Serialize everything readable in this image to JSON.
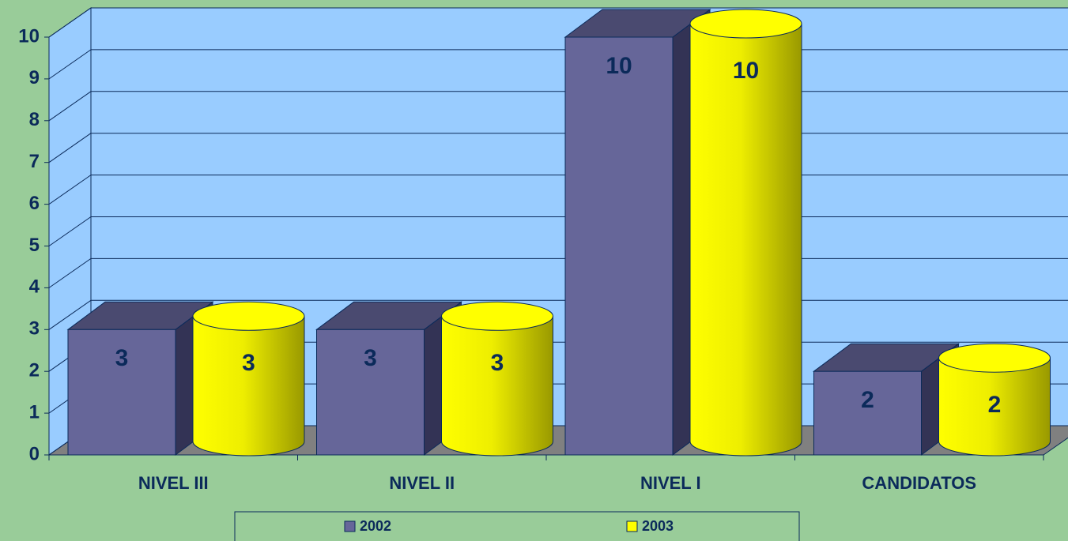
{
  "chart_data": {
    "type": "bar3d",
    "categories": [
      "NIVEL III",
      "NIVEL II",
      "NIVEL I",
      "CANDIDATOS"
    ],
    "series": [
      {
        "name": "2002",
        "color": "#666699",
        "values": [
          3,
          3,
          10,
          2
        ]
      },
      {
        "name": "2003",
        "color": "#ffff00",
        "values": [
          3,
          3,
          10,
          2
        ]
      }
    ],
    "ylim": [
      0,
      10
    ],
    "yticks": [
      0,
      1,
      2,
      3,
      4,
      5,
      6,
      7,
      8,
      9,
      10
    ],
    "grid": true,
    "legend": "bottom"
  }
}
